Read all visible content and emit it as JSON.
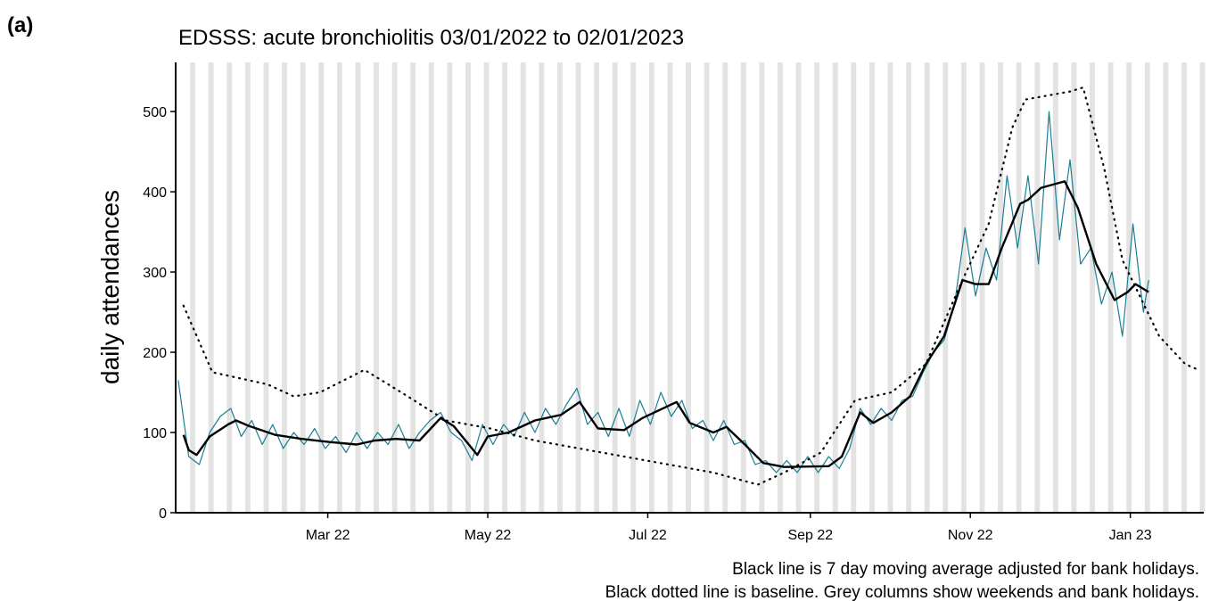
{
  "chart_data": {
    "type": "line",
    "panel_label": "(a)",
    "title": "EDSSS: acute bronchiolitis 03/01/2022 to 02/01/2023",
    "ylabel": "daily attendances",
    "notes": [
      "Black line is 7 day moving average adjusted for bank holidays.",
      "Black dotted line is baseline. Grey columns show weekends and bank holidays."
    ],
    "xlim": [
      -1,
      391
    ],
    "ylim": [
      0,
      559
    ],
    "xticks": [
      {
        "value": 57,
        "label": "Mar 22"
      },
      {
        "value": 118,
        "label": "May 22"
      },
      {
        "value": 179,
        "label": "Jul 22"
      },
      {
        "value": 241,
        "label": "Sep 22"
      },
      {
        "value": 302,
        "label": "Nov 22"
      },
      {
        "value": 363,
        "label": "Jan 23"
      }
    ],
    "yticks": [
      0,
      100,
      200,
      300,
      400,
      500
    ],
    "shaded_columns": [
      5,
      12,
      19,
      26,
      33,
      40,
      47,
      54,
      61,
      68,
      75,
      82,
      89,
      96,
      103,
      110,
      117,
      124,
      131,
      138,
      145,
      152,
      159,
      166,
      173,
      180,
      187,
      194,
      201,
      208,
      215,
      222,
      229,
      236,
      243,
      250,
      257,
      264,
      271,
      278,
      285,
      292,
      299,
      306,
      313,
      320,
      327,
      334,
      341,
      348,
      355,
      362,
      369,
      376,
      383,
      390
    ],
    "shade_color": "#e3e3e3",
    "series": [
      {
        "color": "#1a7f95",
        "style": "solid",
        "width": 1.2,
        "x": [
          0,
          4,
          8,
          12,
          16,
          20,
          24,
          28,
          32,
          36,
          40,
          44,
          48,
          52,
          56,
          60,
          64,
          68,
          72,
          76,
          80,
          84,
          88,
          92,
          96,
          100,
          104,
          108,
          112,
          116,
          120,
          124,
          128,
          132,
          136,
          140,
          144,
          148,
          152,
          156,
          160,
          164,
          168,
          172,
          176,
          180,
          184,
          188,
          192,
          196,
          200,
          204,
          208,
          212,
          216,
          220,
          224,
          228,
          232,
          236,
          240,
          244,
          248,
          252,
          256,
          260,
          264,
          268,
          272,
          276,
          280,
          284,
          288,
          292,
          296,
          300,
          304,
          308,
          312,
          316,
          320,
          324,
          328,
          332,
          336,
          340,
          344,
          348,
          352,
          356,
          360,
          364,
          368,
          370
        ],
        "values": [
          165,
          70,
          60,
          100,
          120,
          130,
          95,
          115,
          85,
          110,
          80,
          100,
          85,
          105,
          80,
          95,
          75,
          100,
          80,
          100,
          85,
          110,
          80,
          100,
          115,
          125,
          100,
          90,
          65,
          110,
          85,
          110,
          95,
          125,
          100,
          130,
          110,
          135,
          155,
          110,
          125,
          95,
          130,
          95,
          140,
          110,
          150,
          120,
          140,
          105,
          115,
          90,
          115,
          85,
          90,
          60,
          65,
          50,
          65,
          50,
          70,
          50,
          70,
          55,
          80,
          130,
          110,
          130,
          115,
          140,
          145,
          175,
          200,
          215,
          260,
          355,
          270,
          330,
          290,
          420,
          330,
          420,
          310,
          500,
          340,
          440,
          310,
          330,
          260,
          300,
          220,
          360,
          250,
          290
        ]
      },
      {
        "color": "#000000",
        "style": "solid",
        "width": 2.4,
        "x": [
          2,
          4,
          7,
          12,
          19,
          22,
          27,
          37,
          47,
          58,
          68,
          75,
          83,
          92,
          100,
          105,
          114,
          118,
          126,
          136,
          146,
          153,
          160,
          170,
          177,
          190,
          195,
          204,
          209,
          216,
          223,
          231,
          248,
          253,
          260,
          265,
          272,
          279,
          285,
          292,
          299,
          304,
          309,
          314,
          321,
          324,
          329,
          338,
          343,
          350,
          357,
          362,
          365,
          370
        ],
        "values": [
          97,
          78,
          72,
          95,
          110,
          115,
          108,
          97,
          92,
          88,
          85,
          90,
          92,
          90,
          118,
          108,
          72,
          95,
          100,
          115,
          122,
          138,
          105,
          103,
          118,
          138,
          112,
          100,
          107,
          85,
          62,
          57,
          58,
          70,
          125,
          112,
          125,
          145,
          185,
          220,
          290,
          285,
          285,
          330,
          385,
          390,
          405,
          413,
          380,
          310,
          265,
          275,
          285,
          275
        ]
      },
      {
        "color": "#000000",
        "style": "dotted",
        "width": 2.2,
        "x": [
          2,
          13,
          34,
          44,
          54,
          71,
          85,
          102,
          119,
          136,
          170,
          204,
          221,
          231,
          245,
          258,
          272,
          285,
          299,
          309,
          318,
          323,
          340,
          345,
          353,
          360,
          374,
          384,
          389
        ],
        "values": [
          258,
          175,
          160,
          145,
          150,
          178,
          150,
          115,
          105,
          90,
          70,
          50,
          35,
          50,
          75,
          140,
          150,
          185,
          290,
          360,
          480,
          515,
          525,
          530,
          430,
          315,
          220,
          185,
          178
        ]
      }
    ]
  }
}
